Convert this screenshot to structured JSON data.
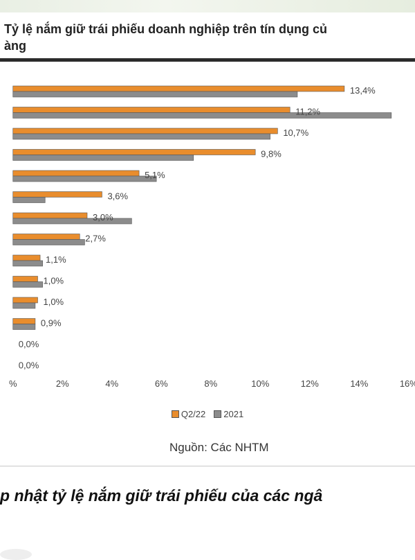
{
  "title_line1": "Tỷ lệ nắm giữ trái phiếu doanh nghiệp trên tín dụng củ",
  "title_line2": "àng",
  "source": "Nguồn: Các NHTM",
  "caption": "p nhật tỷ lệ nắm giữ trái phiếu của các ngâ",
  "chart_data": {
    "type": "bar",
    "orientation": "horizontal",
    "categories": [
      "",
      "",
      "",
      "",
      "",
      "",
      "",
      "",
      "",
      "",
      "",
      "",
      "",
      ""
    ],
    "series": [
      {
        "name": "Q2/22",
        "color": "#e98d2d",
        "values": [
          13.4,
          11.2,
          10.7,
          9.8,
          5.1,
          3.6,
          3.0,
          2.7,
          1.1,
          1.0,
          1.0,
          0.9,
          0.0,
          0.0
        ],
        "labels": [
          "13,4%",
          "11,2%",
          "10,7%",
          "9,8%",
          "5,1%",
          "3,6%",
          "3,0%",
          "2,7%",
          "1,1%",
          "1,0%",
          "1,0%",
          "0,9%",
          "0,0%",
          "0,0%"
        ]
      },
      {
        "name": "2021",
        "color": "#8c8c8c",
        "values": [
          11.5,
          15.3,
          10.4,
          7.3,
          5.8,
          1.3,
          4.8,
          2.9,
          1.2,
          1.2,
          0.9,
          0.9,
          0.0,
          0.0
        ]
      }
    ],
    "xlim": [
      -0.3,
      16.2
    ],
    "xticks": [
      "%",
      "2%",
      "4%",
      "6%",
      "8%",
      "10%",
      "12%",
      "14%",
      "16%"
    ],
    "xtick_values": [
      0,
      2,
      4,
      6,
      8,
      10,
      12,
      14,
      16
    ],
    "legend": [
      "Q2/22",
      "2021"
    ],
    "legend_position": "bottom"
  }
}
